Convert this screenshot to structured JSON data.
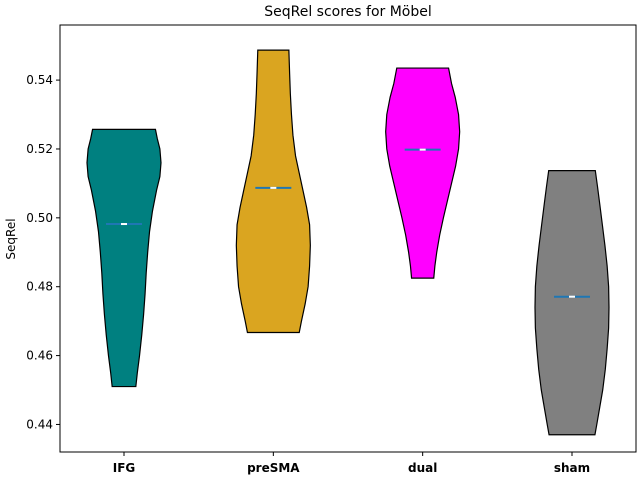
{
  "chart_data": {
    "type": "violin",
    "title": "SeqRel scores for Möbel",
    "xlabel": "",
    "ylabel": "SeqRel",
    "ylim": [
      0.432,
      0.556
    ],
    "yticks": [
      0.44,
      0.46,
      0.48,
      0.5,
      0.52,
      0.54
    ],
    "ytick_labels": [
      "0.44",
      "0.46",
      "0.48",
      "0.50",
      "0.52",
      "0.54"
    ],
    "categories": [
      "IFG",
      "preSMA",
      "dual",
      "sham"
    ],
    "grid": false,
    "violins": [
      {
        "category": "IFG",
        "color": "#008080",
        "min": 0.451,
        "max": 0.5257,
        "median": 0.4982,
        "profile": [
          [
            0.451,
            0.32
          ],
          [
            0.455,
            0.36
          ],
          [
            0.46,
            0.42
          ],
          [
            0.466,
            0.48
          ],
          [
            0.472,
            0.53
          ],
          [
            0.478,
            0.57
          ],
          [
            0.484,
            0.6
          ],
          [
            0.49,
            0.64
          ],
          [
            0.496,
            0.69
          ],
          [
            0.502,
            0.77
          ],
          [
            0.508,
            0.88
          ],
          [
            0.512,
            0.97
          ],
          [
            0.516,
            1.0
          ],
          [
            0.52,
            0.97
          ],
          [
            0.523,
            0.9
          ],
          [
            0.5257,
            0.85
          ]
        ]
      },
      {
        "category": "preSMA",
        "color": "#DAA520",
        "min": 0.4667,
        "max": 0.5487,
        "median": 0.5087,
        "profile": [
          [
            0.4667,
            0.7
          ],
          [
            0.47,
            0.76
          ],
          [
            0.475,
            0.86
          ],
          [
            0.48,
            0.94
          ],
          [
            0.486,
            0.98
          ],
          [
            0.492,
            1.0
          ],
          [
            0.498,
            0.98
          ],
          [
            0.503,
            0.9
          ],
          [
            0.508,
            0.8
          ],
          [
            0.513,
            0.7
          ],
          [
            0.518,
            0.6
          ],
          [
            0.524,
            0.53
          ],
          [
            0.53,
            0.49
          ],
          [
            0.536,
            0.46
          ],
          [
            0.542,
            0.44
          ],
          [
            0.5487,
            0.42
          ]
        ]
      },
      {
        "category": "dual",
        "color": "#FF00FF",
        "min": 0.4825,
        "max": 0.5435,
        "median": 0.5198,
        "profile": [
          [
            0.4825,
            0.3
          ],
          [
            0.486,
            0.33
          ],
          [
            0.49,
            0.38
          ],
          [
            0.495,
            0.46
          ],
          [
            0.5,
            0.56
          ],
          [
            0.505,
            0.67
          ],
          [
            0.51,
            0.78
          ],
          [
            0.515,
            0.89
          ],
          [
            0.52,
            0.97
          ],
          [
            0.525,
            1.0
          ],
          [
            0.53,
            0.97
          ],
          [
            0.535,
            0.88
          ],
          [
            0.539,
            0.78
          ],
          [
            0.5435,
            0.7
          ]
        ]
      },
      {
        "category": "sham",
        "color": "#808080",
        "min": 0.437,
        "max": 0.5137,
        "median": 0.4771,
        "profile": [
          [
            0.437,
            0.62
          ],
          [
            0.44,
            0.67
          ],
          [
            0.445,
            0.75
          ],
          [
            0.45,
            0.83
          ],
          [
            0.456,
            0.9
          ],
          [
            0.462,
            0.95
          ],
          [
            0.468,
            0.99
          ],
          [
            0.474,
            1.0
          ],
          [
            0.48,
            0.99
          ],
          [
            0.486,
            0.95
          ],
          [
            0.492,
            0.89
          ],
          [
            0.498,
            0.82
          ],
          [
            0.504,
            0.75
          ],
          [
            0.509,
            0.69
          ],
          [
            0.5137,
            0.63
          ]
        ]
      }
    ]
  }
}
